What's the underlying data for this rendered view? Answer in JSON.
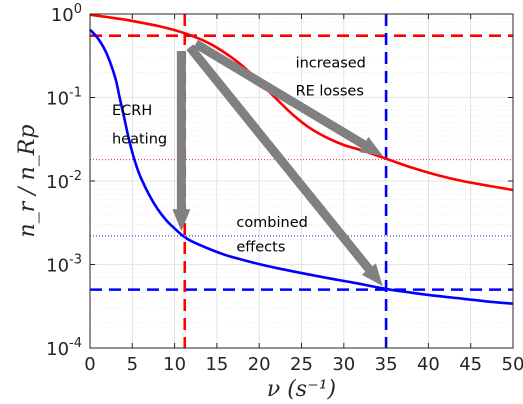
{
  "chart_data": {
    "type": "line",
    "xlabel": "ν (s⁻¹)",
    "ylabel": "n_r / n_Rp",
    "xlim": [
      0,
      50
    ],
    "ylim": [
      0.0001,
      1
    ],
    "yscale": "log",
    "x_ticks": [
      0,
      5,
      10,
      15,
      20,
      25,
      30,
      35,
      40,
      45,
      50
    ],
    "x_tick_labels": [
      "0",
      "5",
      "10",
      "15",
      "20",
      "25",
      "30",
      "35",
      "40",
      "45",
      "50"
    ],
    "y_ticks": [
      0.0001,
      0.001,
      0.01,
      0.1,
      1
    ],
    "y_tick_labels": [
      {
        "base": "10",
        "exp": "-4"
      },
      {
        "base": "10",
        "exp": "-3"
      },
      {
        "base": "10",
        "exp": "-2"
      },
      {
        "base": "10",
        "exp": "-1"
      },
      {
        "base": "10",
        "exp": "0"
      }
    ],
    "grid": true,
    "minor_grid": true,
    "series": [
      {
        "color": "#ff0000",
        "x": [
          0,
          2,
          4,
          6,
          8,
          10,
          12,
          14,
          16,
          18,
          20,
          22,
          24,
          26,
          28,
          30,
          32,
          35,
          38,
          41,
          44,
          47,
          50
        ],
        "y": [
          0.98,
          0.92,
          0.86,
          0.79,
          0.72,
          0.64,
          0.55,
          0.45,
          0.34,
          0.24,
          0.155,
          0.097,
          0.062,
          0.043,
          0.033,
          0.027,
          0.0235,
          0.0185,
          0.0145,
          0.0118,
          0.01,
          0.0088,
          0.0078
        ]
      },
      {
        "color": "#0000ff",
        "x": [
          0,
          1,
          2,
          3,
          3.5,
          4,
          4.5,
          5,
          5.5,
          6,
          7,
          8,
          9,
          10,
          11,
          12,
          14,
          16,
          18,
          20,
          22,
          25,
          28,
          31,
          35,
          38,
          41,
          44,
          47,
          50
        ],
        "y": [
          0.65,
          0.5,
          0.33,
          0.17,
          0.1,
          0.06,
          0.035,
          0.022,
          0.015,
          0.011,
          0.0068,
          0.0046,
          0.0034,
          0.0027,
          0.0022,
          0.0019,
          0.00155,
          0.0013,
          0.00114,
          0.00101,
          0.00091,
          0.00079,
          0.00069,
          0.00061,
          0.00051,
          0.00046,
          0.00042,
          0.00039,
          0.00036,
          0.00034
        ]
      }
    ],
    "reference_lines": [
      {
        "orientation": "horizontal",
        "value": 0.55,
        "color": "#ff0000",
        "style": "dashed"
      },
      {
        "orientation": "horizontal",
        "value": 0.0005,
        "color": "#0000ff",
        "style": "dashed"
      },
      {
        "orientation": "vertical",
        "value": 11.2,
        "color": "#ff0000",
        "style": "dashed"
      },
      {
        "orientation": "vertical",
        "value": 35,
        "color": "#0000ff",
        "style": "dashed"
      },
      {
        "orientation": "horizontal",
        "value": 0.018,
        "color": "#ff0000",
        "style": "dotted"
      },
      {
        "orientation": "horizontal",
        "value": 0.0022,
        "color": "#0000ff",
        "style": "dotted"
      }
    ],
    "arrows": [
      {
        "from": [
          10.8,
          0.36
        ],
        "to": [
          10.8,
          0.0025
        ],
        "color": "#808080"
      },
      {
        "from": [
          12.5,
          0.44
        ],
        "to": [
          34.6,
          0.02
        ],
        "color": "#808080"
      },
      {
        "from": [
          11.8,
          0.4
        ],
        "to": [
          34.6,
          0.00055
        ],
        "color": "#808080"
      }
    ],
    "annotations": [
      {
        "lines": [
          "increased",
          "RE losses"
        ],
        "x": 24.3,
        "y": [
          0.23,
          0.105
        ]
      },
      {
        "lines": [
          "ECRH",
          "heating"
        ],
        "x": 2.6,
        "y": [
          0.062,
          0.028
        ]
      },
      {
        "lines": [
          "combined",
          "effects"
        ],
        "x": 17.3,
        "y": [
          0.0028,
          0.00143
        ]
      }
    ]
  }
}
